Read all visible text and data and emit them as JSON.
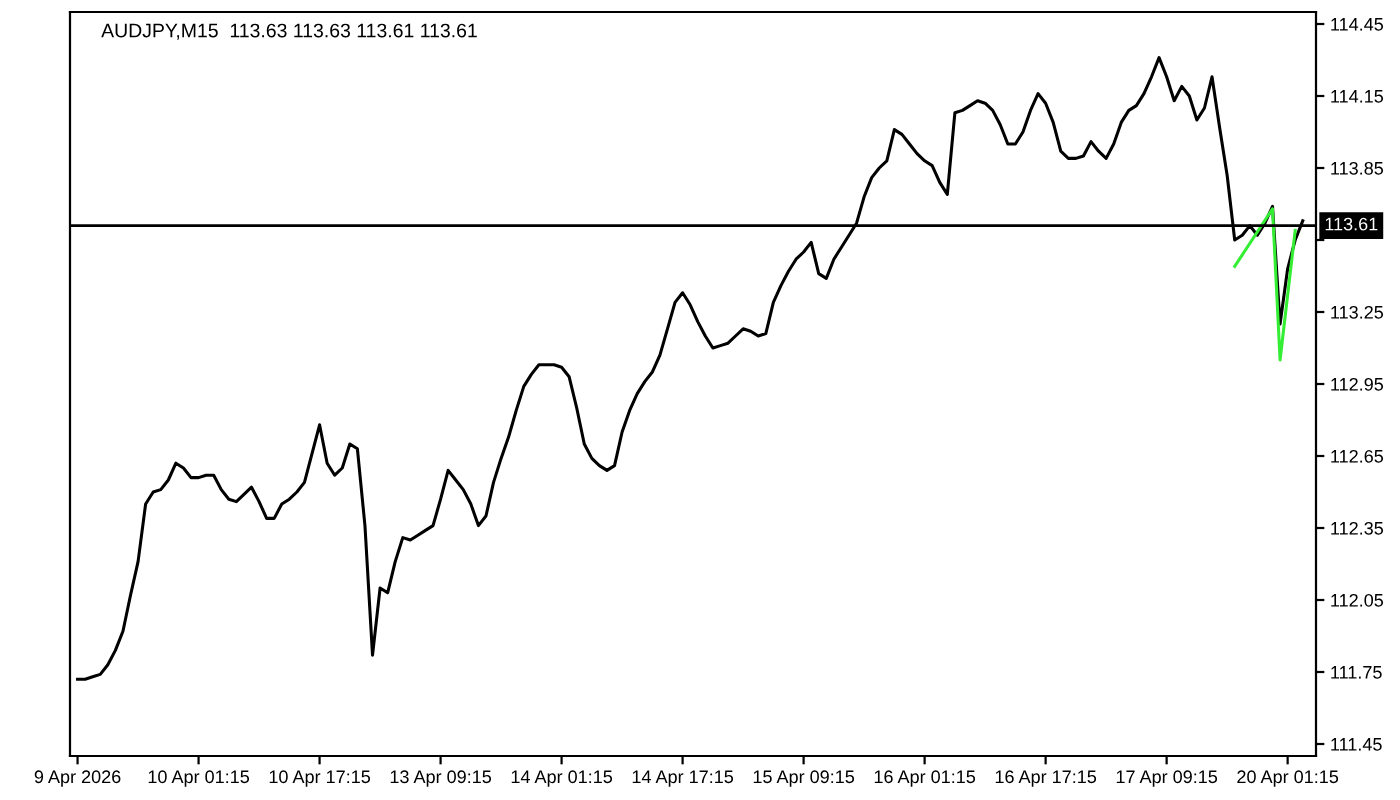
{
  "chart_data": {
    "type": "line",
    "title": "AUDJPY,M15  113.63 113.63 113.61 113.61",
    "categories": [
      "9 Apr 2026",
      null,
      null,
      null,
      null,
      null,
      null,
      null,
      null,
      null,
      null,
      null,
      null,
      null,
      null,
      null,
      "10 Apr 01:15",
      null,
      null,
      null,
      null,
      null,
      null,
      null,
      null,
      null,
      null,
      null,
      null,
      null,
      null,
      null,
      "10 Apr 17:15",
      null,
      null,
      null,
      null,
      null,
      null,
      null,
      null,
      null,
      null,
      null,
      null,
      null,
      null,
      null,
      "13 Apr 09:15",
      null,
      null,
      null,
      null,
      null,
      null,
      null,
      null,
      null,
      null,
      null,
      null,
      null,
      null,
      null,
      "14 Apr 01:15",
      null,
      null,
      null,
      null,
      null,
      null,
      null,
      null,
      null,
      null,
      null,
      null,
      null,
      null,
      null,
      "14 Apr 17:15",
      null,
      null,
      null,
      null,
      null,
      null,
      null,
      null,
      null,
      null,
      null,
      null,
      null,
      null,
      null,
      "15 Apr 09:15",
      null,
      null,
      null,
      null,
      null,
      null,
      null,
      null,
      null,
      null,
      null,
      null,
      null,
      null,
      null,
      "16 Apr 01:15",
      null,
      null,
      null,
      null,
      null,
      null,
      null,
      null,
      null,
      null,
      null,
      null,
      null,
      null,
      null,
      "16 Apr 17:15",
      null,
      null,
      null,
      null,
      null,
      null,
      null,
      null,
      null,
      null,
      null,
      null,
      null,
      null,
      null,
      "17 Apr 09:15",
      null,
      null,
      null,
      null,
      null,
      null,
      null,
      null,
      null,
      null,
      null,
      null,
      null,
      null,
      null,
      "20 Apr 01:15",
      null,
      null
    ],
    "series": [
      {
        "color": "#000000",
        "values": [
          111.72,
          111.72,
          111.73,
          111.74,
          111.78,
          111.84,
          111.92,
          112.07,
          112.21,
          112.45,
          112.5,
          112.51,
          112.55,
          112.62,
          112.6,
          112.56,
          112.56,
          112.57,
          112.57,
          112.51,
          112.47,
          112.46,
          112.49,
          112.52,
          112.46,
          112.39,
          112.39,
          112.45,
          112.47,
          112.5,
          112.54,
          112.66,
          112.78,
          112.62,
          112.57,
          112.6,
          112.7,
          112.68,
          112.36,
          111.82,
          112.1,
          112.08,
          112.21,
          112.31,
          112.3,
          112.32,
          112.34,
          112.36,
          112.47,
          112.59,
          112.55,
          112.51,
          112.45,
          112.36,
          112.4,
          112.54,
          112.64,
          112.73,
          112.84,
          112.94,
          112.99,
          113.03,
          113.03,
          113.03,
          113.02,
          112.98,
          112.85,
          112.7,
          112.64,
          112.61,
          112.59,
          112.61,
          112.75,
          112.84,
          112.91,
          112.96,
          113.0,
          113.07,
          113.18,
          113.29,
          113.33,
          113.28,
          113.21,
          113.15,
          113.1,
          113.11,
          113.12,
          113.15,
          113.18,
          113.17,
          113.15,
          113.16,
          113.29,
          113.36,
          113.42,
          113.47,
          113.5,
          113.54,
          113.41,
          113.39,
          113.47,
          113.52,
          113.57,
          113.62,
          113.73,
          113.81,
          113.85,
          113.88,
          114.01,
          113.99,
          113.95,
          113.91,
          113.88,
          113.86,
          113.79,
          113.74,
          114.08,
          114.09,
          114.11,
          114.13,
          114.12,
          114.09,
          114.03,
          113.95,
          113.95,
          114.0,
          114.09,
          114.16,
          114.12,
          114.04,
          113.92,
          113.89,
          113.89,
          113.9,
          113.96,
          113.92,
          113.89,
          113.95,
          114.04,
          114.09,
          114.11,
          114.16,
          114.23,
          114.31,
          114.23,
          114.13,
          114.19,
          114.15,
          114.05,
          114.1,
          114.23,
          114.02,
          113.82,
          113.55,
          113.57,
          113.61,
          113.57,
          113.62,
          113.69,
          113.2,
          113.43,
          113.55,
          113.63
        ]
      },
      {
        "color": "#33ee33",
        "values": [
          null,
          null,
          null,
          null,
          null,
          null,
          null,
          null,
          null,
          null,
          null,
          null,
          null,
          null,
          null,
          null,
          null,
          null,
          null,
          null,
          null,
          null,
          null,
          null,
          null,
          null,
          null,
          null,
          null,
          null,
          null,
          null,
          null,
          null,
          null,
          null,
          null,
          null,
          null,
          null,
          null,
          null,
          null,
          null,
          null,
          null,
          null,
          null,
          null,
          null,
          null,
          null,
          null,
          null,
          null,
          null,
          null,
          null,
          null,
          null,
          null,
          null,
          null,
          null,
          null,
          null,
          null,
          null,
          null,
          null,
          null,
          null,
          null,
          null,
          null,
          null,
          null,
          null,
          null,
          null,
          null,
          null,
          null,
          null,
          null,
          null,
          null,
          null,
          null,
          null,
          null,
          null,
          null,
          null,
          null,
          null,
          null,
          null,
          null,
          null,
          null,
          null,
          null,
          null,
          null,
          null,
          null,
          null,
          null,
          null,
          null,
          null,
          null,
          null,
          null,
          null,
          null,
          null,
          null,
          null,
          null,
          null,
          null,
          null,
          null,
          null,
          null,
          null,
          null,
          null,
          null,
          null,
          null,
          null,
          null,
          null,
          null,
          null,
          null,
          null,
          null,
          null,
          null,
          null,
          null,
          null,
          null,
          null,
          null,
          null,
          null,
          null,
          null,
          113.44,
          null,
          null,
          null,
          null,
          113.68,
          113.05,
          null,
          113.59,
          null
        ]
      }
    ],
    "ylim": [
      111.4,
      114.5
    ],
    "yticks": [
      {
        "value": 111.45,
        "label": "111.45"
      },
      {
        "value": 111.75,
        "label": "111.75"
      },
      {
        "value": 112.05,
        "label": "112.05"
      },
      {
        "value": 112.35,
        "label": "112.35"
      },
      {
        "value": 112.65,
        "label": "112.65"
      },
      {
        "value": 112.95,
        "label": "112.95"
      },
      {
        "value": 113.25,
        "label": "113.25"
      },
      {
        "value": 113.55,
        "label": null
      },
      {
        "value": 113.85,
        "label": "113.85"
      },
      {
        "value": 114.15,
        "label": "114.15"
      },
      {
        "value": 114.45,
        "label": "114.45"
      }
    ],
    "ref_lines": [
      {
        "axis": "y",
        "value": 113.61,
        "label": "113.61",
        "color": "#000000"
      }
    ],
    "grid": false,
    "legend": false
  }
}
